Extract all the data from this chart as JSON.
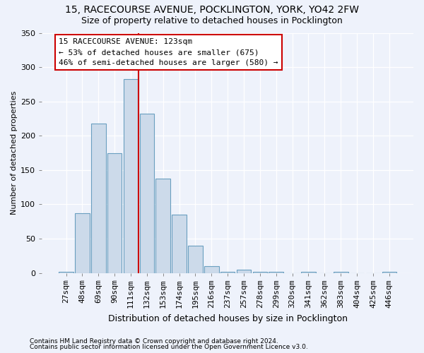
{
  "title1": "15, RACECOURSE AVENUE, POCKLINGTON, YORK, YO42 2FW",
  "title2": "Size of property relative to detached houses in Pocklington",
  "xlabel": "Distribution of detached houses by size in Pocklington",
  "ylabel": "Number of detached properties",
  "footnote1": "Contains HM Land Registry data © Crown copyright and database right 2024.",
  "footnote2": "Contains public sector information licensed under the Open Government Licence v3.0.",
  "categories": [
    "27sqm",
    "48sqm",
    "69sqm",
    "90sqm",
    "111sqm",
    "132sqm",
    "153sqm",
    "174sqm",
    "195sqm",
    "216sqm",
    "237sqm",
    "257sqm",
    "278sqm",
    "299sqm",
    "320sqm",
    "341sqm",
    "362sqm",
    "383sqm",
    "404sqm",
    "425sqm",
    "446sqm"
  ],
  "values": [
    2,
    87,
    218,
    175,
    283,
    232,
    138,
    85,
    40,
    10,
    2,
    5,
    2,
    2,
    0,
    2,
    0,
    2,
    0,
    0,
    2
  ],
  "bar_color": "#ccdaea",
  "bar_edge_color": "#6a9fc0",
  "red_line_color": "#cc0000",
  "annotation_text": "15 RACECOURSE AVENUE: 123sqm\n← 53% of detached houses are smaller (675)\n46% of semi-detached houses are larger (580) →",
  "annotation_box_facecolor": "#ffffff",
  "annotation_box_edgecolor": "#cc0000",
  "background_color": "#eef2fb",
  "grid_color": "#ffffff",
  "ylim": [
    0,
    350
  ],
  "yticks": [
    0,
    50,
    100,
    150,
    200,
    250,
    300,
    350
  ],
  "title_fontsize": 10,
  "subtitle_fontsize": 9,
  "ylabel_fontsize": 8,
  "xlabel_fontsize": 9,
  "tick_fontsize": 8,
  "annot_fontsize": 8,
  "footnote_fontsize": 6.5
}
